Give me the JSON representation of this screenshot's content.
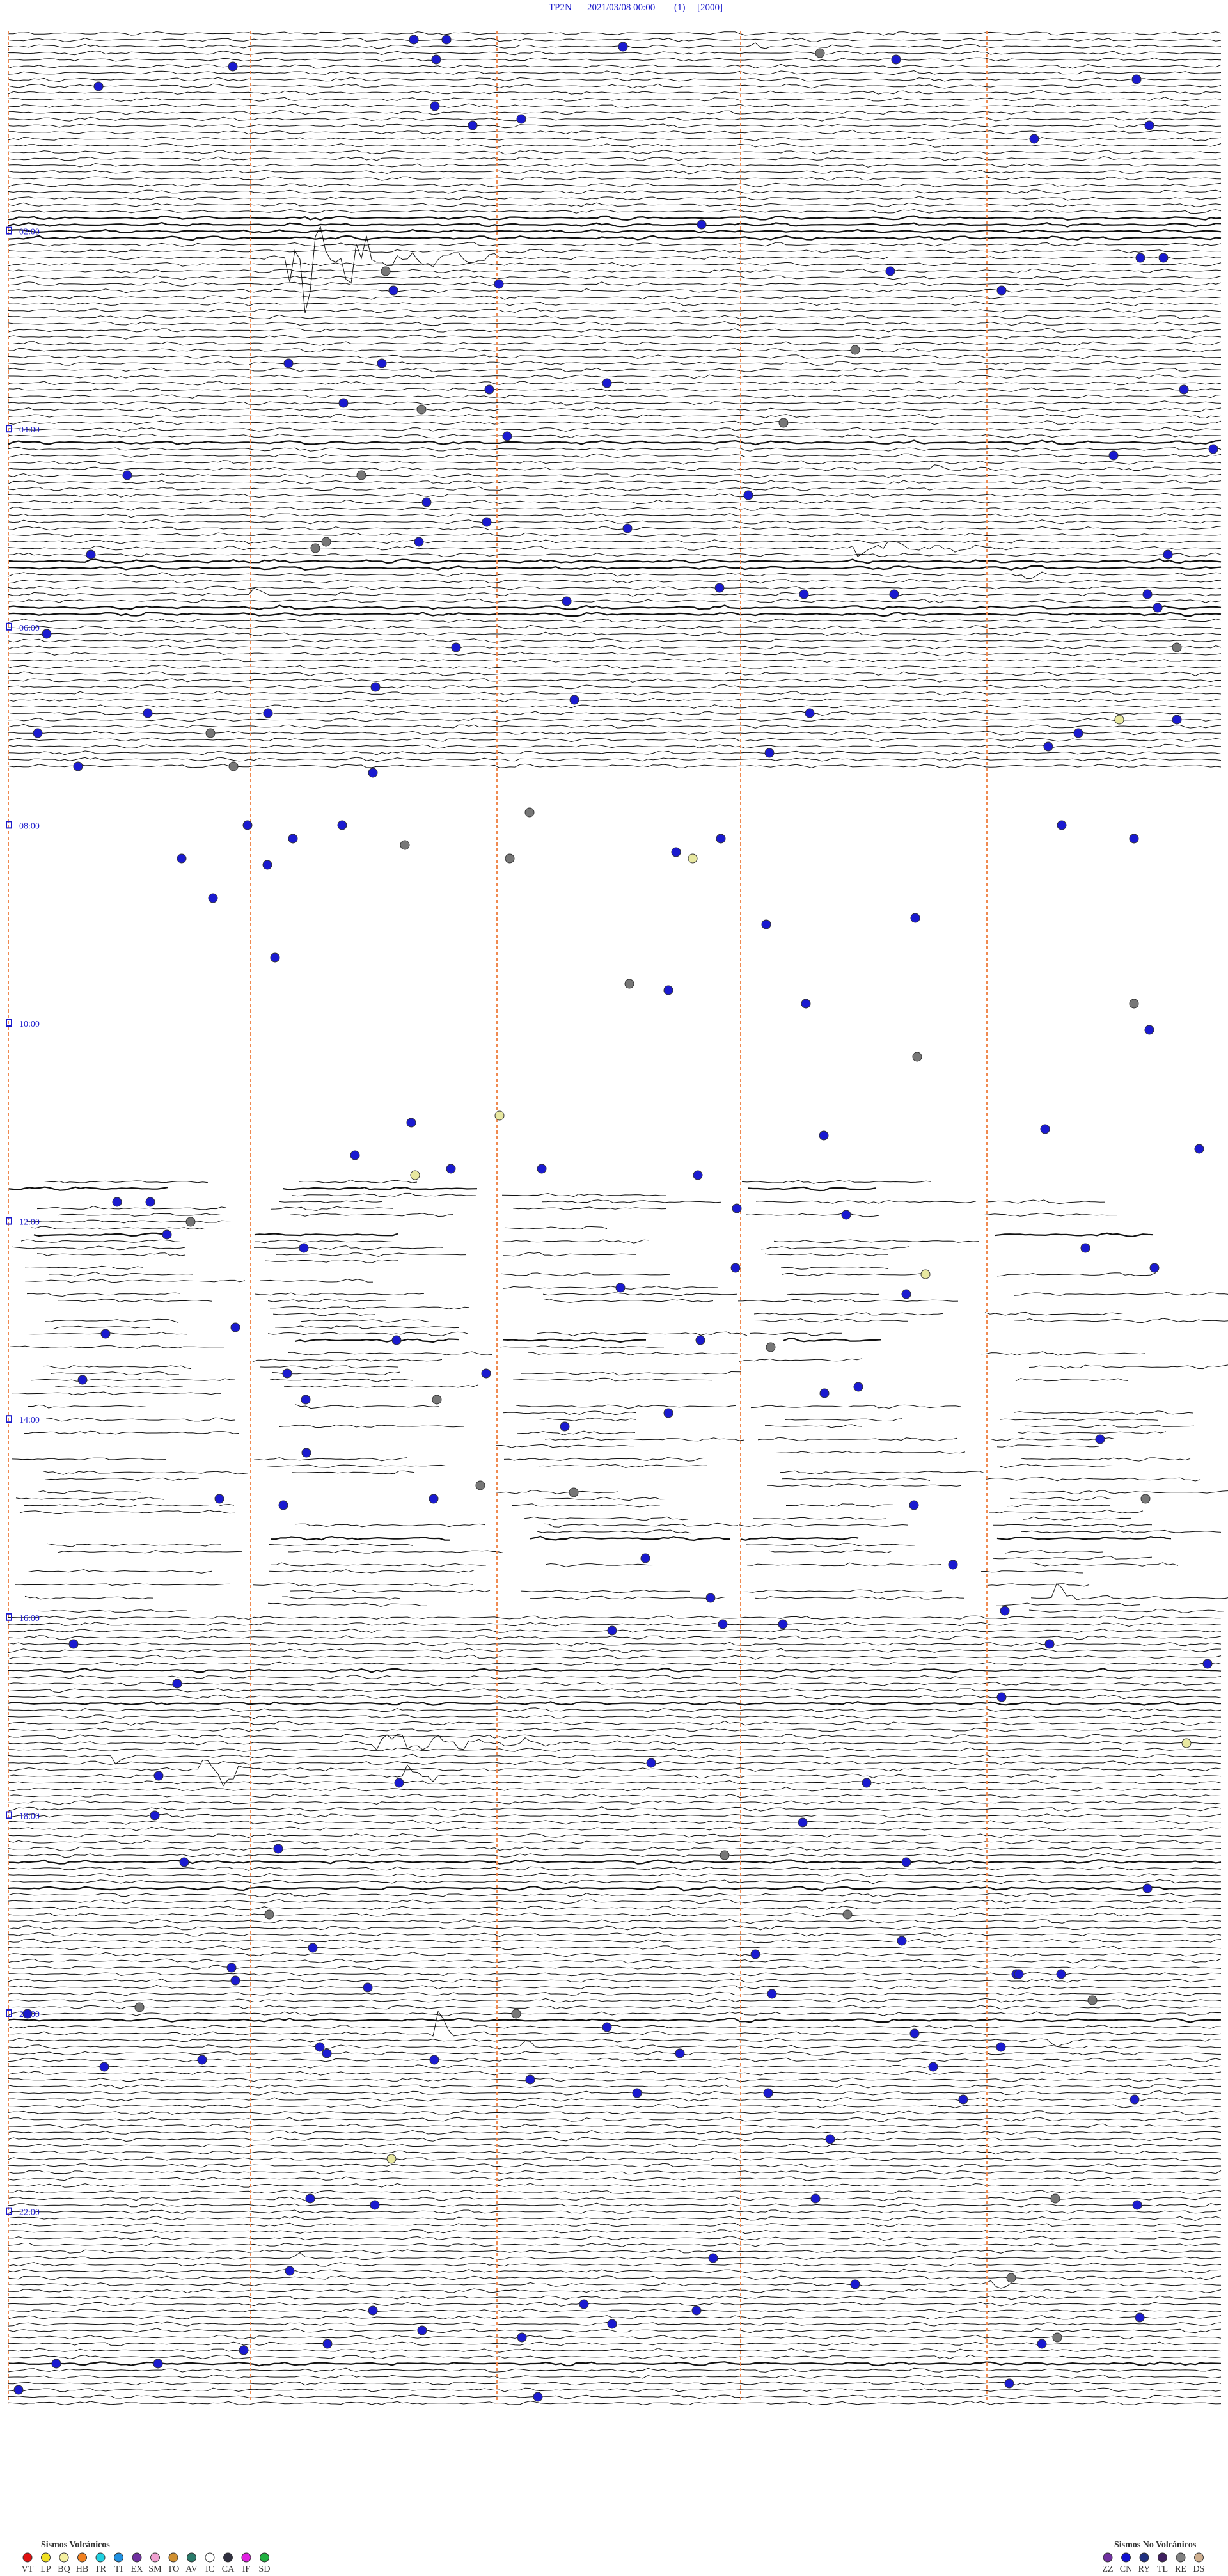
{
  "header": {
    "station": "TP2N",
    "datetime": "2021/03/08 00:00",
    "channel": "(1)",
    "scale": "[2000]"
  },
  "time_labels": [
    "02:00",
    "04:00",
    "06:00",
    "08:00",
    "10:00",
    "12:00",
    "14:00",
    "16:00",
    "18:00",
    "20:00",
    "22:00"
  ],
  "legend_volcanic": {
    "title": "Sismos Volcánicos",
    "items": [
      {
        "code": "VT",
        "color": "#e01010"
      },
      {
        "code": "LP",
        "color": "#f0e020"
      },
      {
        "code": "BQ",
        "color": "#f4f0a0"
      },
      {
        "code": "HB",
        "color": "#f08020"
      },
      {
        "code": "TR",
        "color": "#20d0e0"
      },
      {
        "code": "TI",
        "color": "#2090e0"
      },
      {
        "code": "EX",
        "color": "#7030a0"
      },
      {
        "code": "SM",
        "color": "#f0a0d0"
      },
      {
        "code": "TO",
        "color": "#d09030"
      },
      {
        "code": "AV",
        "color": "#2a7a6a"
      },
      {
        "code": "IC",
        "color": "#ffffff"
      },
      {
        "code": "CA",
        "color": "#303040"
      },
      {
        "code": "IF",
        "color": "#e020e0"
      },
      {
        "code": "SD",
        "color": "#20b040"
      }
    ]
  },
  "legend_nonvolcanic": {
    "title": "Sismos No Volcánicos",
    "items": [
      {
        "code": "ZZ",
        "color": "#7030a0"
      },
      {
        "code": "CN",
        "color": "#1010d0"
      },
      {
        "code": "RY",
        "color": "#203080"
      },
      {
        "code": "TL",
        "color": "#402060"
      },
      {
        "code": "RE",
        "color": "#808080"
      },
      {
        "code": "DS",
        "color": "#d0b090"
      }
    ]
  }
}
